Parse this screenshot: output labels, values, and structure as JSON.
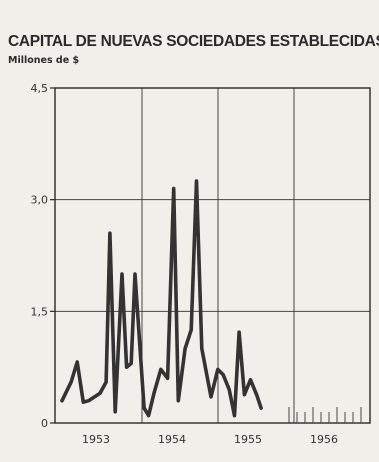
{
  "chart_data": {
    "type": "line",
    "title": "CAPITAL DE NUEVAS SOCIEDADES ESTABLECIDAS",
    "ylabel": "Millones de $",
    "xlabel": "",
    "ylim": [
      0,
      4.5
    ],
    "yticks": [
      "0",
      "1,5",
      "3,0",
      "4,5"
    ],
    "yticks_values": [
      0,
      1.5,
      3.0,
      4.5
    ],
    "x_categories": [
      "1953",
      "1954",
      "1955",
      "1956"
    ],
    "grid": true,
    "series": [
      {
        "name": "",
        "x": [
          0.0,
          0.12,
          0.2,
          0.28,
          0.35,
          0.5,
          0.58,
          0.63,
          0.7,
          0.79,
          0.85,
          0.91,
          0.96,
          1.03,
          1.08,
          1.14,
          1.21,
          1.3,
          1.39,
          1.47,
          1.53,
          1.62,
          1.7,
          1.77,
          1.84,
          1.96,
          2.05,
          2.12,
          2.2,
          2.27,
          2.33,
          2.4,
          2.48,
          2.56,
          2.62,
          2.68,
          2.74,
          2.82
        ],
        "y": [
          0.3,
          0.55,
          0.82,
          0.28,
          0.3,
          0.4,
          0.55,
          2.55,
          0.15,
          2.0,
          0.75,
          0.8,
          2.0,
          0.95,
          0.2,
          0.1,
          0.4,
          0.72,
          0.6,
          3.15,
          0.3,
          1.0,
          1.25,
          3.25,
          1.0,
          0.35,
          0.72,
          0.65,
          0.45,
          0.1,
          1.22,
          0.38,
          0.58,
          0.38,
          0.2,
          null,
          null,
          null
        ]
      }
    ],
    "projection_ticks": 10
  }
}
